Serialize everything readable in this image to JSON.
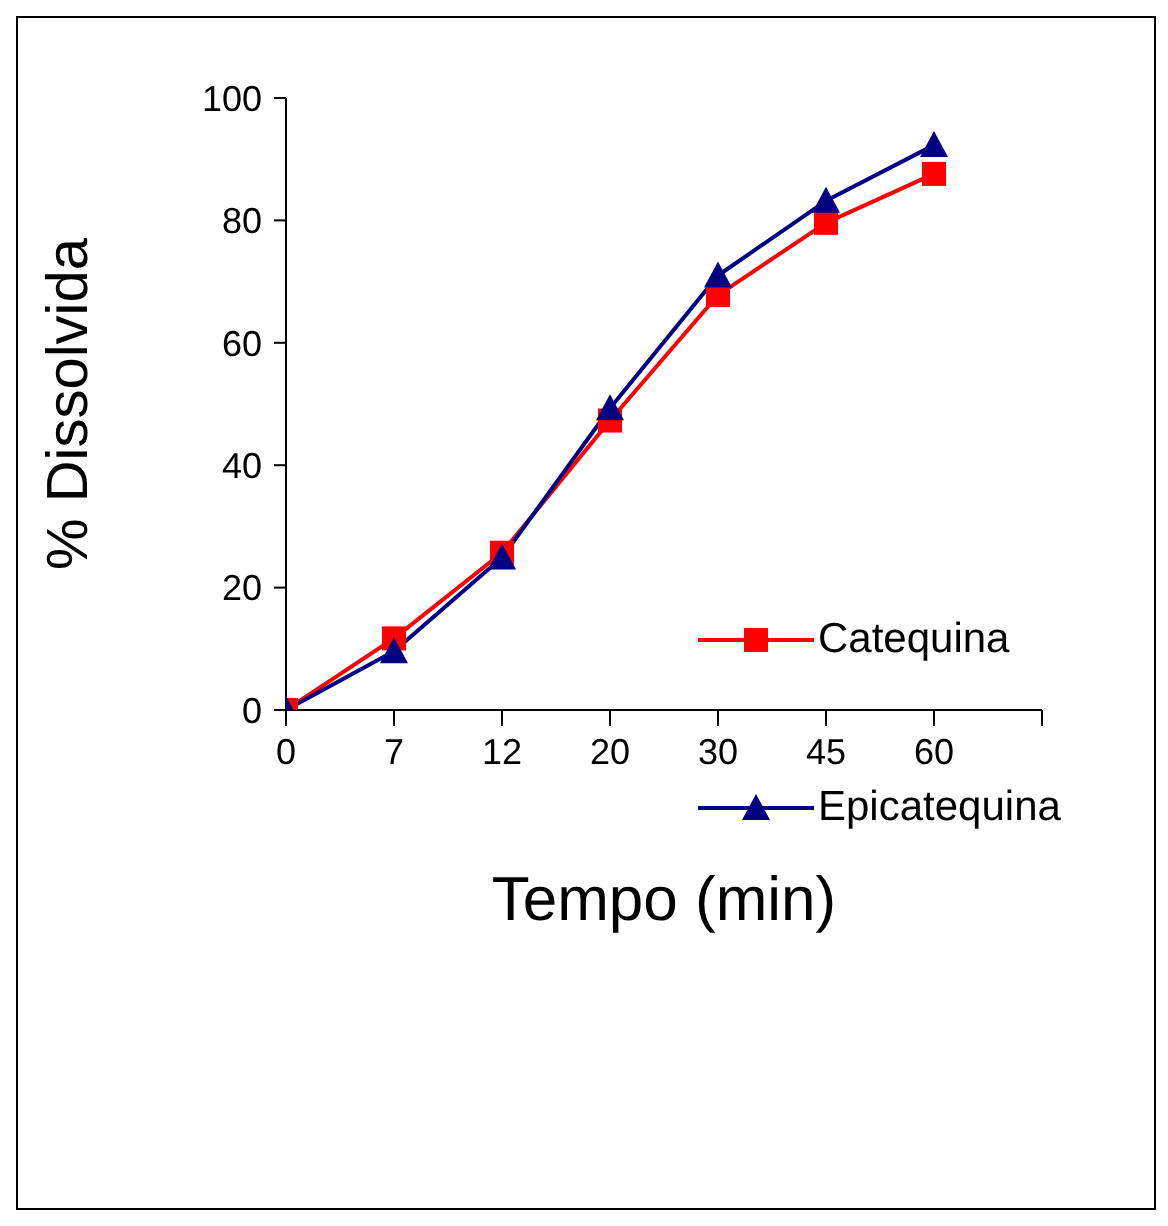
{
  "chart_data": {
    "type": "line",
    "xlabel": "Tempo (min)",
    "ylabel": "% Dissolvida",
    "categories": [
      "0",
      "7",
      "12",
      "20",
      "30",
      "45",
      "60"
    ],
    "series": [
      {
        "name": "Catequina",
        "color": "#ff0000",
        "marker": "square",
        "values": [
          0,
          11.7,
          25.7,
          47.3,
          67.8,
          79.6,
          87.6
        ]
      },
      {
        "name": "Epicatequina",
        "color": "#000080",
        "marker": "triangle",
        "values": [
          0,
          9.6,
          24.9,
          49.3,
          71.0,
          83.2,
          92.3
        ]
      }
    ],
    "ylim": [
      0,
      100
    ],
    "yticks": [
      0,
      20,
      40,
      60,
      80,
      100
    ],
    "grid": false,
    "legend": "right"
  }
}
